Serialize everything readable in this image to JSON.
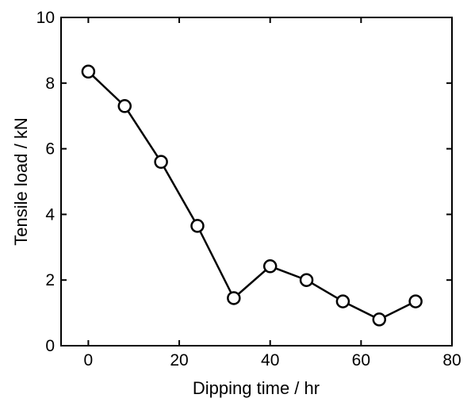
{
  "chart_data": {
    "type": "line",
    "title": "",
    "xlabel": "Dipping time / hr",
    "ylabel": "Tensile load / kN",
    "xlim": [
      -6,
      80
    ],
    "ylim": [
      0,
      10
    ],
    "xticks": [
      0,
      20,
      40,
      60,
      80
    ],
    "yticks": [
      0,
      2,
      4,
      6,
      8,
      10
    ],
    "grid": false,
    "legend": "none",
    "marker": "open-circle",
    "series": [
      {
        "x": [
          0,
          8,
          16,
          24,
          32,
          40,
          48,
          56,
          64,
          72
        ],
        "y": [
          8.35,
          7.3,
          5.6,
          3.65,
          1.45,
          2.42,
          2.0,
          1.35,
          0.8,
          1.35
        ]
      }
    ],
    "colors": {
      "line": "#000000",
      "marker_fill": "#ffffff",
      "axis": "#000000"
    }
  }
}
